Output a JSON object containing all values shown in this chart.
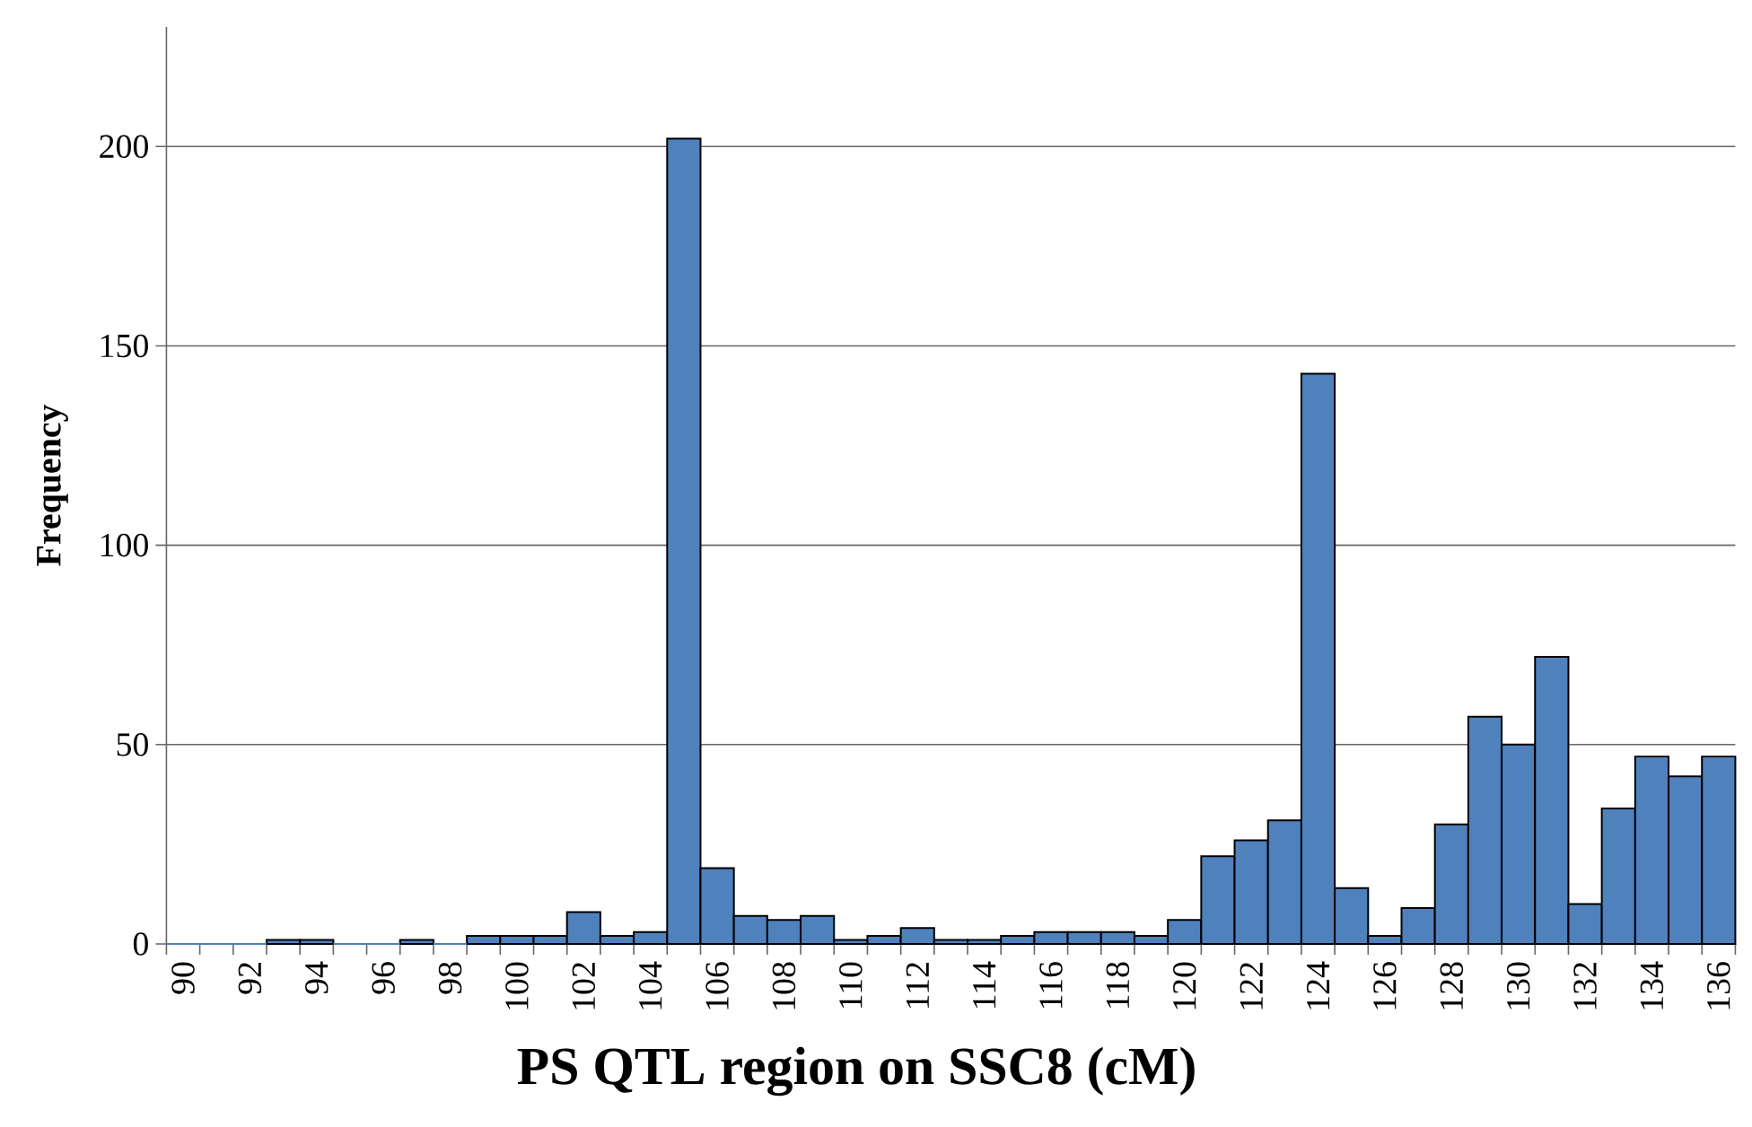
{
  "chart_data": {
    "type": "bar",
    "xlabel": "PS QTL region on SSC8 (cM)",
    "ylabel": "Frequency",
    "categories": [
      "90",
      null,
      "92",
      null,
      "94",
      null,
      "96",
      null,
      "98",
      null,
      "100",
      null,
      "102",
      null,
      "104",
      null,
      "106",
      null,
      "108",
      null,
      "110",
      null,
      "112",
      null,
      "114",
      null,
      "116",
      null,
      "118",
      null,
      "120",
      null,
      "122",
      null,
      "124",
      null,
      "126",
      null,
      "128",
      null,
      "130",
      null,
      "132",
      null,
      "134",
      null,
      "136"
    ],
    "values": [
      0,
      0,
      0,
      1,
      1,
      0,
      0,
      1,
      0,
      2,
      2,
      2,
      8,
      2,
      3,
      202,
      19,
      7,
      6,
      7,
      1,
      2,
      4,
      1,
      1,
      2,
      3,
      3,
      3,
      2,
      6,
      22,
      26,
      31,
      143,
      14,
      2,
      9,
      30,
      57,
      50,
      72,
      10,
      34,
      47,
      42,
      47
    ],
    "color": "#4f81bd",
    "ylim": [
      0,
      230
    ],
    "yticks": [
      0,
      50,
      100,
      150,
      200
    ],
    "grid": "y"
  }
}
